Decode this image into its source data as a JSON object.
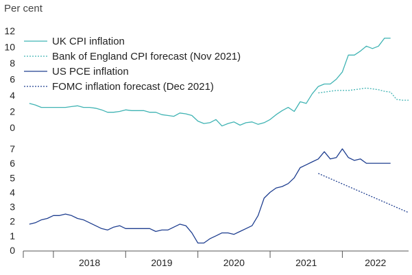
{
  "chart_data": [
    {
      "type": "line",
      "ylabel": "Per cent",
      "yticks": [
        0,
        2,
        4,
        6,
        8,
        10,
        12
      ],
      "ylim": [
        0,
        12
      ],
      "xlim": [
        "2017-08",
        "2022-12"
      ],
      "grid": false,
      "legend": "top-left",
      "series": [
        {
          "name": "UK CPI inflation",
          "color": "#3fb3b3",
          "style": "solid",
          "x": [
            "2017-09",
            "2017-10",
            "2017-11",
            "2017-12",
            "2018-01",
            "2018-02",
            "2018-03",
            "2018-04",
            "2018-05",
            "2018-06",
            "2018-07",
            "2018-08",
            "2018-09",
            "2018-10",
            "2018-11",
            "2018-12",
            "2019-01",
            "2019-02",
            "2019-03",
            "2019-04",
            "2019-05",
            "2019-06",
            "2019-07",
            "2019-08",
            "2019-09",
            "2019-10",
            "2019-11",
            "2019-12",
            "2020-01",
            "2020-02",
            "2020-03",
            "2020-04",
            "2020-05",
            "2020-06",
            "2020-07",
            "2020-08",
            "2020-09",
            "2020-10",
            "2020-11",
            "2020-12",
            "2021-01",
            "2021-02",
            "2021-03",
            "2021-04",
            "2021-05",
            "2021-06",
            "2021-07",
            "2021-08",
            "2021-09",
            "2021-10",
            "2021-11",
            "2021-12",
            "2022-01",
            "2022-02",
            "2022-03",
            "2022-04",
            "2022-05",
            "2022-06",
            "2022-07",
            "2022-08",
            "2022-09"
          ],
          "values": [
            3.0,
            2.8,
            2.5,
            2.5,
            2.5,
            2.5,
            2.5,
            2.6,
            2.7,
            2.5,
            2.5,
            2.4,
            2.2,
            1.9,
            1.9,
            2.0,
            2.2,
            2.1,
            2.1,
            2.1,
            1.9,
            1.9,
            1.6,
            1.5,
            1.4,
            1.8,
            1.7,
            1.5,
            0.8,
            0.5,
            0.6,
            1.0,
            0.2,
            0.5,
            0.7,
            0.3,
            0.6,
            0.7,
            0.4,
            0.6,
            1.0,
            1.6,
            2.1,
            2.5,
            2.0,
            3.2,
            3.0,
            4.2,
            5.1,
            5.4,
            5.4,
            6.0,
            6.9,
            9.0,
            9.0,
            9.5,
            10.1,
            9.8,
            10.1,
            11.1,
            11.1
          ]
        },
        {
          "name": "Bank of England CPI forecast (Nov 2021)",
          "color": "#3fb3b3",
          "style": "dotted",
          "x": [
            "2021-09",
            "2021-10",
            "2021-11",
            "2021-12",
            "2022-01",
            "2022-02",
            "2022-03",
            "2022-04",
            "2022-05",
            "2022-06",
            "2022-07",
            "2022-08",
            "2022-09",
            "2022-10",
            "2022-11",
            "2022-12"
          ],
          "values": [
            4.3,
            4.4,
            4.5,
            4.6,
            4.6,
            4.6,
            4.7,
            4.8,
            4.9,
            4.8,
            4.7,
            4.5,
            4.4,
            3.5,
            3.4,
            3.4
          ]
        }
      ]
    },
    {
      "type": "line",
      "yticks": [
        0,
        1,
        2,
        3,
        4,
        5,
        6,
        7
      ],
      "ylim": [
        0,
        7
      ],
      "xlim": [
        "2017-08",
        "2022-12"
      ],
      "xticks": [
        "2018",
        "2019",
        "2020",
        "2021",
        "2022"
      ],
      "grid": false,
      "series": [
        {
          "name": "US PCE inflation",
          "color": "#1d3d8f",
          "style": "solid",
          "x": [
            "2017-09",
            "2017-10",
            "2017-11",
            "2017-12",
            "2018-01",
            "2018-02",
            "2018-03",
            "2018-04",
            "2018-05",
            "2018-06",
            "2018-07",
            "2018-08",
            "2018-09",
            "2018-10",
            "2018-11",
            "2018-12",
            "2019-01",
            "2019-02",
            "2019-03",
            "2019-04",
            "2019-05",
            "2019-06",
            "2019-07",
            "2019-08",
            "2019-09",
            "2019-10",
            "2019-11",
            "2019-12",
            "2020-01",
            "2020-02",
            "2020-03",
            "2020-04",
            "2020-05",
            "2020-06",
            "2020-07",
            "2020-08",
            "2020-09",
            "2020-10",
            "2020-11",
            "2020-12",
            "2021-01",
            "2021-02",
            "2021-03",
            "2021-04",
            "2021-05",
            "2021-06",
            "2021-07",
            "2021-08",
            "2021-09",
            "2021-10",
            "2021-11",
            "2021-12",
            "2022-01",
            "2022-02",
            "2022-03",
            "2022-04",
            "2022-05",
            "2022-06",
            "2022-07",
            "2022-08",
            "2022-09"
          ],
          "values": [
            1.8,
            1.9,
            2.1,
            2.2,
            2.4,
            2.4,
            2.5,
            2.4,
            2.2,
            2.1,
            1.9,
            1.7,
            1.5,
            1.4,
            1.6,
            1.7,
            1.5,
            1.5,
            1.5,
            1.5,
            1.5,
            1.3,
            1.4,
            1.4,
            1.6,
            1.8,
            1.7,
            1.2,
            0.5,
            0.5,
            0.8,
            1.0,
            1.2,
            1.2,
            1.1,
            1.3,
            1.5,
            1.7,
            2.4,
            3.6,
            4.0,
            4.3,
            4.4,
            4.6,
            5.0,
            5.7,
            5.9,
            6.1,
            6.3,
            6.8,
            6.3,
            6.4,
            7.0,
            6.4,
            6.2,
            6.3,
            6.0,
            6.0,
            6.0,
            6.0,
            6.0
          ]
        },
        {
          "name": "FOMC inflation forecast (Dec 2021)",
          "color": "#1d3d8f",
          "style": "dotted",
          "x": [
            "2021-09",
            "2022-12"
          ],
          "values": [
            5.3,
            2.6
          ]
        }
      ]
    }
  ]
}
